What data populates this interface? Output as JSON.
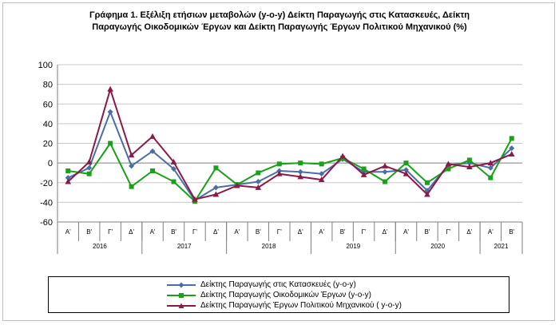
{
  "title_lines": [
    "Γράφημα 1. Εξέλιξη ετήσιων μεταβολών (y-o-y) Δείκτη Παραγωγής στις Κατασκευές, Δείκτη",
    "Παραγωγής Οικοδομικών Έργων και  Δείκτη Παραγωγής  Έργων Πολιτικού Μηχανικού (%)"
  ],
  "chart_data": {
    "type": "line",
    "categories": [
      "Α'",
      "Β'",
      "Γ'",
      "Δ'",
      "Α'",
      "Β'",
      "Γ'",
      "Δ'",
      "Α'",
      "Β'",
      "Γ'",
      "Δ'",
      "Α'",
      "Β'",
      "Γ'",
      "Δ'",
      "Α'",
      "Β'",
      "Γ'",
      "Δ'",
      "Α'",
      "Β'"
    ],
    "years": [
      {
        "label": "2016",
        "start": 0,
        "count": 4
      },
      {
        "label": "2017",
        "start": 4,
        "count": 4
      },
      {
        "label": "2018",
        "start": 8,
        "count": 4
      },
      {
        "label": "2019",
        "start": 12,
        "count": 4
      },
      {
        "label": "2020",
        "start": 16,
        "count": 4
      },
      {
        "label": "2021",
        "start": 20,
        "count": 2
      }
    ],
    "ylim": [
      -60,
      100
    ],
    "yticks": [
      -60,
      -40,
      -20,
      0,
      20,
      40,
      60,
      80,
      100
    ],
    "grid": "horizontal",
    "legend_position": "bottom",
    "series": [
      {
        "name": "Δείκτης Παραγωγής στις Κατασκευές (y-o-y)",
        "color": "#4a6fa5",
        "marker": "diamond",
        "values": [
          -15,
          -5,
          52,
          -3,
          12,
          -6,
          -38,
          -25,
          -22,
          -19,
          -8,
          -9,
          -11,
          4,
          -9,
          -9,
          -7,
          -28,
          -2,
          0,
          -5,
          15
        ]
      },
      {
        "name": "Δείκτης Παραγωγής Οικοδομικών Έργων (y-o-y)",
        "color": "#1aa01a",
        "marker": "square",
        "values": [
          -8,
          -11,
          20,
          -24,
          -8,
          -19,
          -39,
          -5,
          -22,
          -10,
          -1,
          0,
          -1,
          5,
          -6,
          -19,
          0,
          -20,
          -6,
          3,
          -15,
          25
        ]
      },
      {
        "name": "Δείκτης Παραγωγής Έργων Πολιτικού Μηχανικού ( y-o-y)",
        "color": "#8b1a4a",
        "marker": "triangle",
        "values": [
          -19,
          1,
          75,
          8,
          27,
          1,
          -37,
          -32,
          -23,
          -25,
          -11,
          -14,
          -17,
          7,
          -12,
          -3,
          -11,
          -32,
          -1,
          -4,
          0,
          9
        ]
      }
    ]
  }
}
